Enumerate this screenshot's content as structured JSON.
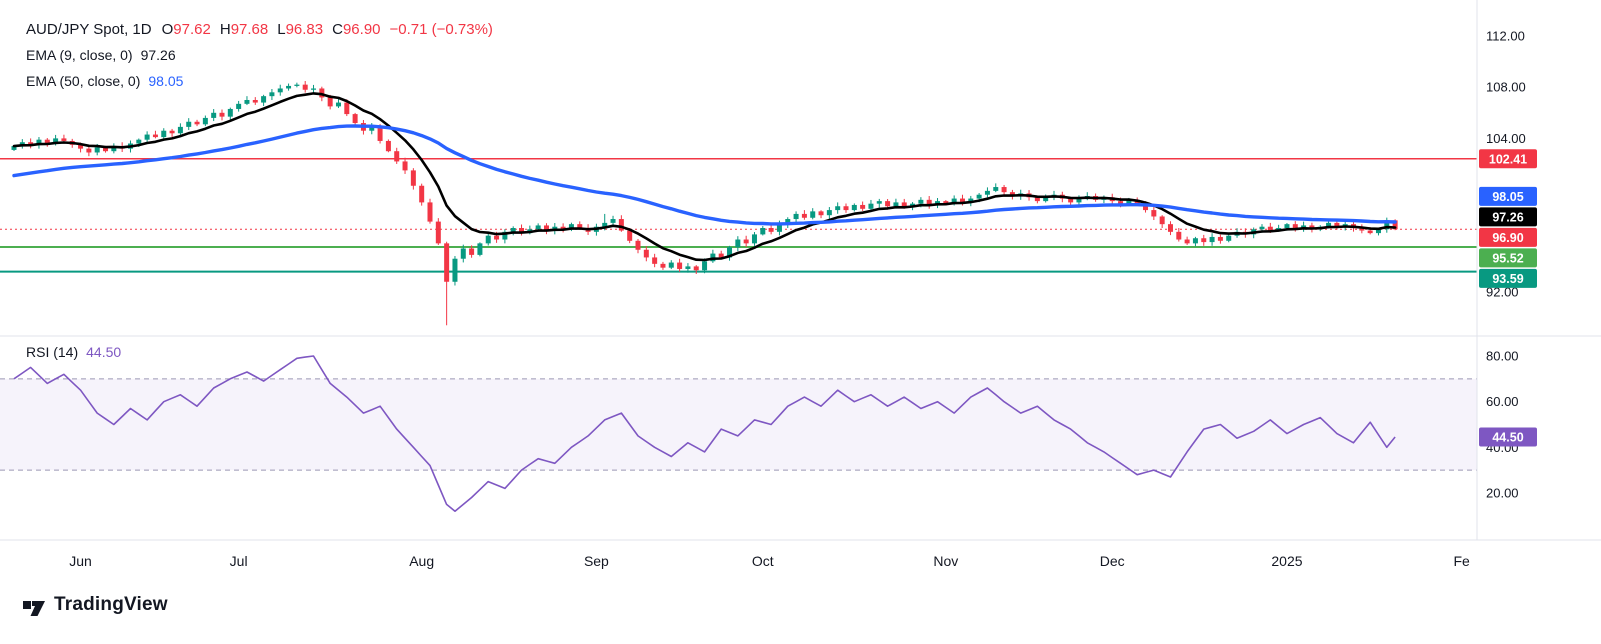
{
  "header": {
    "symbol": "AUD/JPY Spot, 1D",
    "ohlc": [
      {
        "label": "O",
        "value": "97.62"
      },
      {
        "label": "H",
        "value": "97.68"
      },
      {
        "label": "L",
        "value": "96.83"
      },
      {
        "label": "C",
        "value": "96.90"
      }
    ],
    "change": "−0.71 (−0.73%)",
    "indicators": [
      {
        "label": "EMA (9, close, 0)",
        "value": "97.26"
      },
      {
        "label": "EMA (50, close, 0)",
        "value": "98.05"
      }
    ]
  },
  "rsi_header": {
    "label": "RSI (14)",
    "value": "44.50"
  },
  "footer": {
    "brand": "TradingView"
  },
  "colors": {
    "up": "#089981",
    "down": "#f23645",
    "ema9": "#000000",
    "ema50": "#2962ff",
    "rsi": "#7e57c2",
    "level_red": "#f23645",
    "level_green": "#4caf50",
    "level_teal": "#089981",
    "axis_text": "#131722",
    "divider": "#e0e3eb",
    "band_dash": "#9b98b5"
  },
  "chart_data": {
    "type": "candlestick",
    "title": "AUD/JPY Spot, 1D",
    "timeframe": "1D",
    "price_range_visible": [
      89,
      113
    ],
    "price_ticks": [
      112.0,
      108.0,
      104.0,
      92.0
    ],
    "x_axis": {
      "labels": [
        {
          "label": "Jun",
          "i": 8
        },
        {
          "label": "Jul",
          "i": 27
        },
        {
          "label": "Aug",
          "i": 49
        },
        {
          "label": "Sep",
          "i": 70
        },
        {
          "label": "Oct",
          "i": 90
        },
        {
          "label": "Nov",
          "i": 112
        },
        {
          "label": "Dec",
          "i": 132
        },
        {
          "label": "2025",
          "i": 153
        },
        {
          "label": "Fe",
          "i": 174
        }
      ]
    },
    "candles": {
      "closes": [
        103.4,
        103.7,
        103.5,
        103.9,
        103.6,
        104.0,
        103.8,
        103.5,
        103.2,
        102.9,
        103.3,
        103.0,
        103.4,
        103.2,
        103.6,
        103.9,
        104.3,
        104.1,
        104.6,
        104.4,
        104.9,
        105.3,
        105.1,
        105.6,
        106.0,
        105.7,
        106.3,
        106.7,
        107.0,
        106.8,
        107.3,
        107.6,
        107.9,
        108.1,
        108.2,
        107.8,
        107.9,
        107.2,
        106.5,
        106.8,
        105.9,
        105.2,
        104.6,
        104.9,
        103.8,
        103.0,
        102.2,
        101.5,
        100.3,
        99.0,
        97.5,
        95.8,
        92.8,
        94.6,
        95.4,
        94.9,
        95.8,
        96.4,
        96.1,
        96.7,
        97.0,
        96.6,
        96.9,
        97.2,
        96.8,
        97.1,
        96.9,
        97.3,
        97.0,
        96.7,
        97.1,
        97.4,
        97.7,
        96.8,
        96.0,
        95.3,
        94.7,
        94.2,
        93.9,
        94.3,
        93.8,
        94.0,
        93.7,
        94.4,
        95.0,
        94.7,
        95.5,
        96.1,
        95.8,
        96.5,
        97.0,
        96.7,
        97.3,
        97.7,
        98.1,
        97.8,
        98.3,
        98.0,
        98.4,
        98.7,
        98.4,
        98.8,
        98.5,
        98.9,
        99.1,
        98.7,
        99.0,
        98.6,
        98.9,
        99.2,
        98.8,
        99.1,
        98.9,
        99.3,
        99.0,
        99.3,
        99.6,
        99.9,
        100.2,
        99.8,
        99.5,
        99.7,
        99.4,
        99.1,
        99.4,
        99.6,
        99.3,
        99.0,
        99.3,
        99.5,
        99.2,
        99.4,
        99.1,
        98.9,
        99.2,
        98.8,
        98.4,
        97.9,
        97.3,
        96.7,
        96.1,
        95.8,
        96.2,
        95.9,
        96.3,
        96.0,
        96.4,
        96.7,
        96.5,
        96.9,
        97.1,
        96.8,
        97.0,
        97.3,
        97.0,
        97.2,
        96.9,
        97.1,
        97.4,
        97.1,
        97.3,
        97.0,
        96.8,
        96.6,
        96.9,
        97.6,
        96.9
      ],
      "overrides": [
        {
          "i": 52,
          "low": 89.4
        },
        {
          "i": 71,
          "high": 98.1
        },
        {
          "i": 166,
          "high": 97.68,
          "low": 96.83
        }
      ]
    },
    "emas": [
      {
        "name": "EMA 9",
        "period": 9,
        "current": 97.26,
        "seed": 103.4,
        "width": 2.6
      },
      {
        "name": "EMA 50",
        "period": 50,
        "current": 98.05,
        "seed": 101.0,
        "width": 3.4
      }
    ],
    "levels": [
      {
        "price": 102.41,
        "style": "solid",
        "colorKey": "level_red",
        "width": 1.6
      },
      {
        "price": 96.9,
        "style": "dotted",
        "colorKey": "level_red",
        "width": 1
      },
      {
        "price": 95.52,
        "style": "solid",
        "colorKey": "level_green",
        "width": 2
      },
      {
        "price": 93.59,
        "style": "solid",
        "colorKey": "level_teal",
        "width": 2
      }
    ],
    "price_badges": [
      {
        "text": "102.41",
        "price": 102.41,
        "colorKey": "level_red"
      },
      {
        "text": "98.05",
        "price": 98.05,
        "colorKey": "ema50"
      },
      {
        "text": "97.26",
        "price": 97.26,
        "colorKey": "ema9"
      },
      {
        "text": "96.90",
        "price": 96.9,
        "colorKey": "down"
      },
      {
        "text": "95.52",
        "price": 95.52,
        "colorKey": "level_green"
      },
      {
        "text": "93.59",
        "price": 93.59,
        "colorKey": "level_teal"
      }
    ],
    "rsi": {
      "period": 14,
      "current": 44.5,
      "bands": {
        "upper": 70,
        "lower": 30
      },
      "ticks": [
        80.0,
        60.0,
        40.0,
        20.0
      ],
      "badge": {
        "text": "44.50",
        "value": 44.5,
        "colorKey": "rsi"
      },
      "keypoints": [
        [
          0,
          70
        ],
        [
          2,
          75
        ],
        [
          4,
          68
        ],
        [
          6,
          72
        ],
        [
          8,
          65
        ],
        [
          10,
          55
        ],
        [
          12,
          50
        ],
        [
          14,
          57
        ],
        [
          16,
          52
        ],
        [
          18,
          60
        ],
        [
          20,
          63
        ],
        [
          22,
          58
        ],
        [
          24,
          66
        ],
        [
          26,
          70
        ],
        [
          28,
          73
        ],
        [
          30,
          69
        ],
        [
          32,
          74
        ],
        [
          34,
          79
        ],
        [
          36,
          80
        ],
        [
          38,
          68
        ],
        [
          40,
          62
        ],
        [
          42,
          55
        ],
        [
          44,
          58
        ],
        [
          46,
          48
        ],
        [
          48,
          40
        ],
        [
          50,
          32
        ],
        [
          52,
          15
        ],
        [
          53,
          12
        ],
        [
          55,
          18
        ],
        [
          57,
          25
        ],
        [
          59,
          22
        ],
        [
          61,
          30
        ],
        [
          63,
          35
        ],
        [
          65,
          33
        ],
        [
          67,
          40
        ],
        [
          69,
          45
        ],
        [
          71,
          52
        ],
        [
          73,
          55
        ],
        [
          75,
          45
        ],
        [
          77,
          40
        ],
        [
          79,
          36
        ],
        [
          81,
          42
        ],
        [
          83,
          38
        ],
        [
          85,
          48
        ],
        [
          87,
          45
        ],
        [
          89,
          52
        ],
        [
          91,
          50
        ],
        [
          93,
          58
        ],
        [
          95,
          62
        ],
        [
          97,
          58
        ],
        [
          99,
          65
        ],
        [
          101,
          60
        ],
        [
          103,
          63
        ],
        [
          105,
          58
        ],
        [
          107,
          62
        ],
        [
          109,
          57
        ],
        [
          111,
          60
        ],
        [
          113,
          55
        ],
        [
          115,
          62
        ],
        [
          117,
          66
        ],
        [
          119,
          60
        ],
        [
          121,
          55
        ],
        [
          123,
          58
        ],
        [
          125,
          52
        ],
        [
          127,
          48
        ],
        [
          129,
          42
        ],
        [
          131,
          38
        ],
        [
          133,
          33
        ],
        [
          135,
          28
        ],
        [
          137,
          30
        ],
        [
          139,
          27
        ],
        [
          141,
          38
        ],
        [
          143,
          48
        ],
        [
          145,
          50
        ],
        [
          147,
          44
        ],
        [
          149,
          47
        ],
        [
          151,
          52
        ],
        [
          153,
          46
        ],
        [
          155,
          50
        ],
        [
          157,
          53
        ],
        [
          159,
          46
        ],
        [
          161,
          42
        ],
        [
          163,
          51
        ],
        [
          165,
          40
        ],
        [
          166,
          44.5
        ]
      ]
    }
  }
}
